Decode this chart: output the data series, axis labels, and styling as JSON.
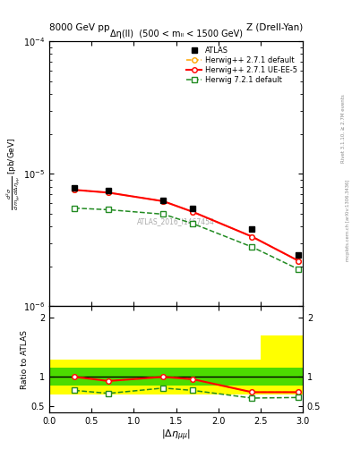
{
  "title_left": "8000 GeV pp",
  "title_right": "Z (Drell-Yan)",
  "subtitle": "Δη(ll)  (500 < mₗₗ < 1500 GeV)",
  "watermark": "ATLAS_2016_I1467454",
  "rivet_label": "Rivet 3.1.10, ≥ 2.7M events",
  "mcplots_label": "mcplots.cern.ch [arXiv:1306.3436]",
  "ylabel_ratio": "Ratio to ATLAS",
  "xlabel": "|Δηₘₘₘₙ|",
  "xlim": [
    0,
    3
  ],
  "main_ylim": [
    1e-06,
    0.0001
  ],
  "x_data": [
    0.3,
    0.7,
    1.35,
    1.7,
    2.4,
    2.95
  ],
  "atlas_y": [
    7.8e-06,
    7.5e-06,
    6.3e-06,
    5.5e-06,
    3.8e-06,
    2.45e-06
  ],
  "herwig_default_y": [
    7.55e-06,
    7.2e-06,
    6.2e-06,
    5.15e-06,
    3.35e-06,
    2.2e-06
  ],
  "herwig_ueee5_y": [
    7.55e-06,
    7.2e-06,
    6.2e-06,
    5.15e-06,
    3.35e-06,
    2.2e-06
  ],
  "herwig721_y": [
    5.5e-06,
    5.35e-06,
    4.95e-06,
    4.2e-06,
    2.8e-06,
    1.9e-06
  ],
  "ratio_herwig_default": [
    1.0,
    0.93,
    1.0,
    0.96,
    0.74,
    0.74
  ],
  "ratio_herwig_ueee5": [
    1.0,
    0.93,
    1.0,
    0.96,
    0.74,
    0.74
  ],
  "ratio_herwig721": [
    0.77,
    0.72,
    0.81,
    0.77,
    0.64,
    0.65
  ],
  "band_x_edges": [
    0.0,
    0.5,
    1.0,
    1.5,
    2.0,
    2.5,
    3.0
  ],
  "band_green_lo": [
    0.85,
    0.85,
    0.85,
    0.85,
    0.85,
    0.85
  ],
  "band_green_hi": [
    1.15,
    1.15,
    1.15,
    1.15,
    1.15,
    1.15
  ],
  "band_yellow_lo": [
    0.7,
    0.7,
    0.7,
    0.7,
    0.7,
    0.7
  ],
  "band_yellow_hi": [
    1.3,
    1.3,
    1.3,
    1.3,
    1.3,
    1.7
  ],
  "atlas_color": "#000000",
  "herwig_default_color": "#FFA500",
  "herwig_ueee5_color": "#FF0000",
  "herwig721_color": "#228B22",
  "green_band_color": "#00CC00",
  "yellow_band_color": "#FFFF00",
  "background_color": "#ffffff"
}
